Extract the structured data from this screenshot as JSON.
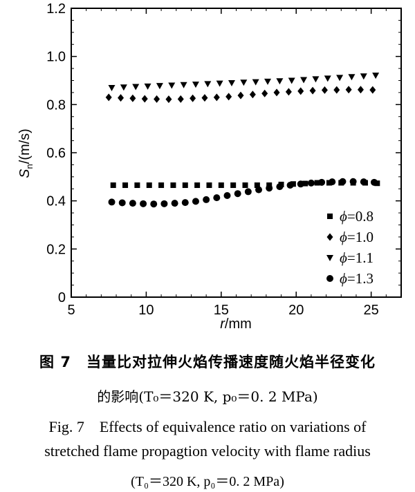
{
  "chart_data": {
    "type": "scatter",
    "title": "",
    "xlabel_var": "r",
    "xlabel_unit": "/mm",
    "ylabel_var": "S",
    "ylabel_sub": "n",
    "ylabel_unit": "/(m/s)",
    "xlim": [
      5,
      27
    ],
    "ylim": [
      0,
      1.2
    ],
    "xticks": [
      "5",
      "10",
      "15",
      "20",
      "25"
    ],
    "yticks": [
      "0",
      "0.2",
      "0.4",
      "0.6",
      "0.8",
      "1.0",
      "1.2"
    ],
    "legend_position": "bottom-right",
    "grid": false,
    "series": [
      {
        "name": "ϕ=0.8",
        "marker": "square",
        "x": [
          7.8,
          8.6,
          9.4,
          10.2,
          11.0,
          11.8,
          12.6,
          13.4,
          14.2,
          15.0,
          15.8,
          16.6,
          17.4,
          18.2,
          19.0,
          19.8,
          20.6,
          21.4,
          22.2,
          23.0,
          23.8,
          24.6,
          25.4
        ],
        "y": [
          0.465,
          0.465,
          0.465,
          0.465,
          0.465,
          0.465,
          0.465,
          0.465,
          0.465,
          0.465,
          0.465,
          0.465,
          0.465,
          0.465,
          0.468,
          0.47,
          0.472,
          0.475,
          0.475,
          0.475,
          0.475,
          0.475,
          0.473
        ]
      },
      {
        "name": "ϕ=1.0",
        "marker": "diamond",
        "x": [
          7.5,
          8.3,
          9.1,
          9.9,
          10.7,
          11.5,
          12.3,
          13.1,
          13.9,
          14.7,
          15.5,
          16.3,
          17.1,
          17.9,
          18.7,
          19.5,
          20.3,
          21.1,
          21.9,
          22.7,
          23.5,
          24.3,
          25.1
        ],
        "y": [
          0.83,
          0.828,
          0.826,
          0.824,
          0.823,
          0.822,
          0.823,
          0.826,
          0.828,
          0.83,
          0.833,
          0.838,
          0.842,
          0.846,
          0.85,
          0.853,
          0.856,
          0.858,
          0.86,
          0.861,
          0.862,
          0.862,
          0.861
        ]
      },
      {
        "name": "ϕ=1.1",
        "marker": "triangle-down",
        "x": [
          7.7,
          8.5,
          9.3,
          10.1,
          10.9,
          11.7,
          12.5,
          13.3,
          14.1,
          14.9,
          15.7,
          16.5,
          17.3,
          18.1,
          18.9,
          19.7,
          20.5,
          21.3,
          22.1,
          22.9,
          23.7,
          24.5,
          25.3
        ],
        "y": [
          0.87,
          0.872,
          0.874,
          0.876,
          0.878,
          0.88,
          0.882,
          0.884,
          0.886,
          0.888,
          0.89,
          0.892,
          0.894,
          0.896,
          0.898,
          0.9,
          0.903,
          0.906,
          0.909,
          0.912,
          0.915,
          0.918,
          0.921
        ]
      },
      {
        "name": "ϕ=1.3",
        "marker": "circle",
        "x": [
          7.7,
          8.4,
          9.1,
          9.8,
          10.5,
          11.2,
          11.9,
          12.6,
          13.3,
          14.0,
          14.7,
          15.4,
          16.1,
          16.8,
          17.5,
          18.2,
          18.9,
          19.6,
          20.3,
          21.0,
          21.7,
          22.4,
          23.1,
          23.8,
          24.5,
          25.2
        ],
        "y": [
          0.395,
          0.392,
          0.39,
          0.388,
          0.387,
          0.388,
          0.39,
          0.393,
          0.398,
          0.405,
          0.413,
          0.422,
          0.43,
          0.438,
          0.446,
          0.453,
          0.459,
          0.465,
          0.47,
          0.474,
          0.477,
          0.479,
          0.48,
          0.48,
          0.479,
          0.477
        ]
      }
    ]
  },
  "caption": {
    "cn_line1": "图 7　当量比对拉伸火焰传播速度随火焰半径变化",
    "cn_line2": "的影响(T₀＝320 K, p₀＝0. 2 MPa)",
    "en_line1": "Fig. 7　Effects of equivalence ratio on variations of",
    "en_line2": "stretched flame propagtion velocity with flame radius",
    "en_line3": "(T₀＝320 K, p₀＝0. 2 MPa)"
  }
}
